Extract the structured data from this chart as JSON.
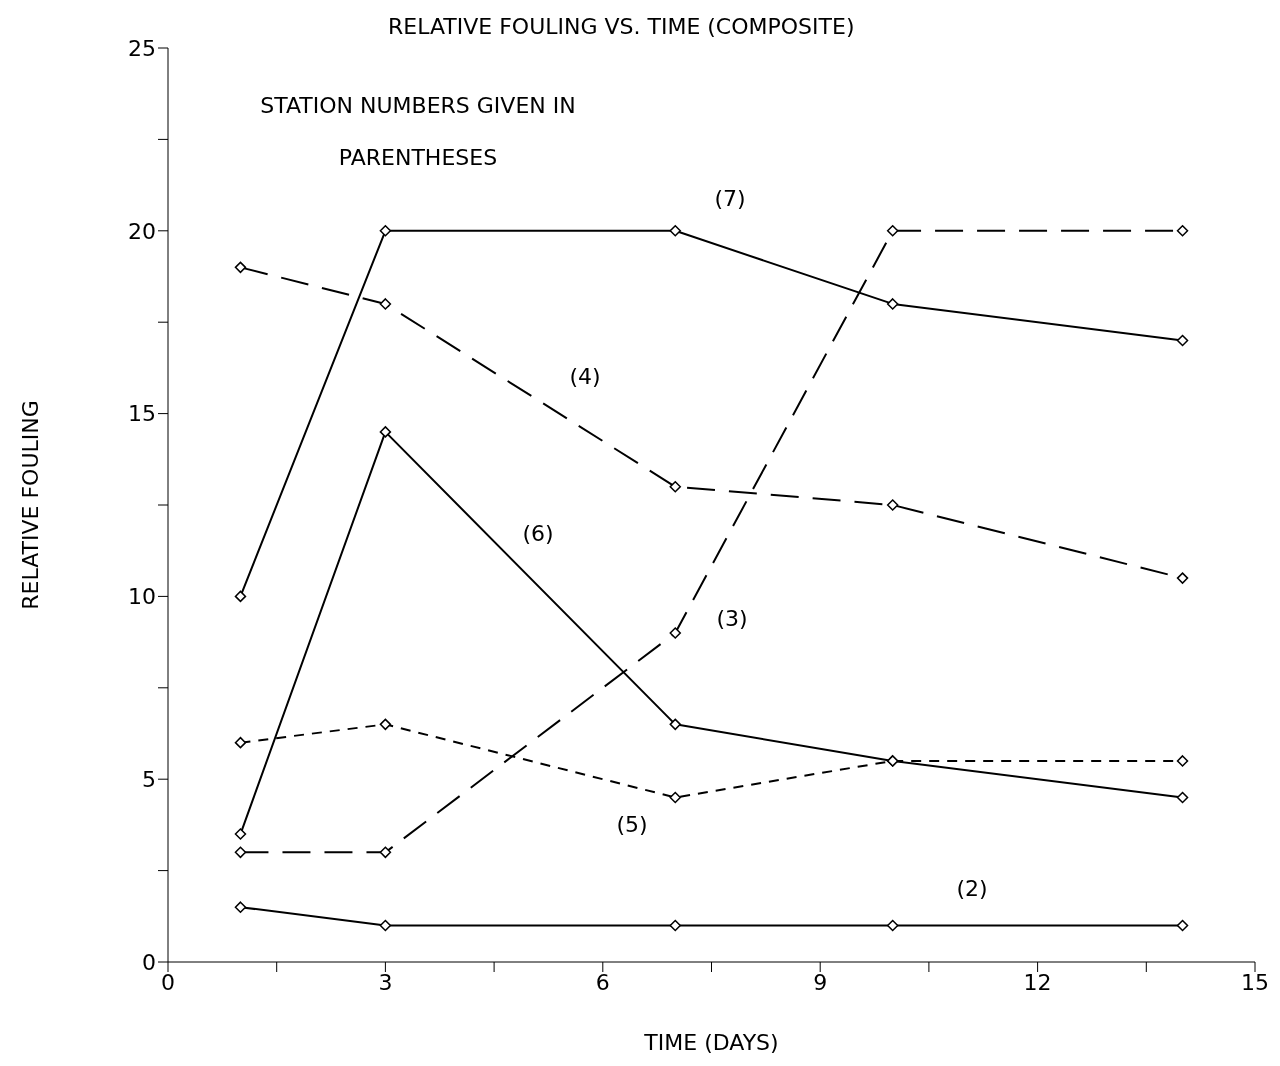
{
  "chart_data": {
    "type": "line",
    "title": "RELATIVE FOULING VS. TIME (COMPOSITE)",
    "xlabel": "TIME (DAYS)",
    "ylabel": "RELATIVE FOULING",
    "x": [
      1,
      3,
      7,
      10,
      14
    ],
    "series": [
      {
        "name": "(7)",
        "color": "#000000",
        "line_style": "solid",
        "values": [
          10,
          20,
          20,
          18,
          17
        ]
      },
      {
        "name": "(4)",
        "color": "#000000",
        "line_style": "dashed",
        "values": [
          19,
          18,
          13,
          12.5,
          10.5
        ]
      },
      {
        "name": "(6)",
        "color": "#000000",
        "line_style": "solid",
        "values": [
          3.5,
          14.5,
          6.5,
          5.5,
          4.5
        ]
      },
      {
        "name": "(3)",
        "color": "#000000",
        "line_style": "dashed",
        "values": [
          3,
          3,
          9,
          20,
          20
        ]
      },
      {
        "name": "(5)",
        "color": "#000000",
        "line_style": "dotted",
        "values": [
          6,
          6.5,
          4.5,
          5.5,
          5.5
        ]
      },
      {
        "name": "(2)",
        "color": "#000000",
        "line_style": "solid",
        "values": [
          1.5,
          1,
          1,
          1,
          1
        ]
      }
    ],
    "xlim": [
      0,
      15
    ],
    "ylim": [
      0,
      25
    ],
    "xticks": [
      0,
      {
        "value": 1.5,
        "label": null
      },
      3,
      {
        "value": 4.5,
        "label": null
      },
      6,
      {
        "value": 7.5,
        "label": null
      },
      9,
      {
        "value": 10.5,
        "label": null
      },
      12,
      {
        "value": 13.5,
        "label": null
      },
      15
    ],
    "yticks": [
      0,
      {
        "value": 2.5,
        "label": null
      },
      5,
      {
        "value": 7.5,
        "label": null
      },
      10,
      {
        "value": 12.5,
        "label": null
      },
      15,
      {
        "value": 17.5,
        "label": null
      },
      20,
      {
        "value": 22.5,
        "label": null
      },
      25
    ],
    "grid": false,
    "legend": false,
    "marker": "diamond",
    "annotations": [
      "STATION NUMBERS GIVEN IN PARENTHESES"
    ]
  }
}
